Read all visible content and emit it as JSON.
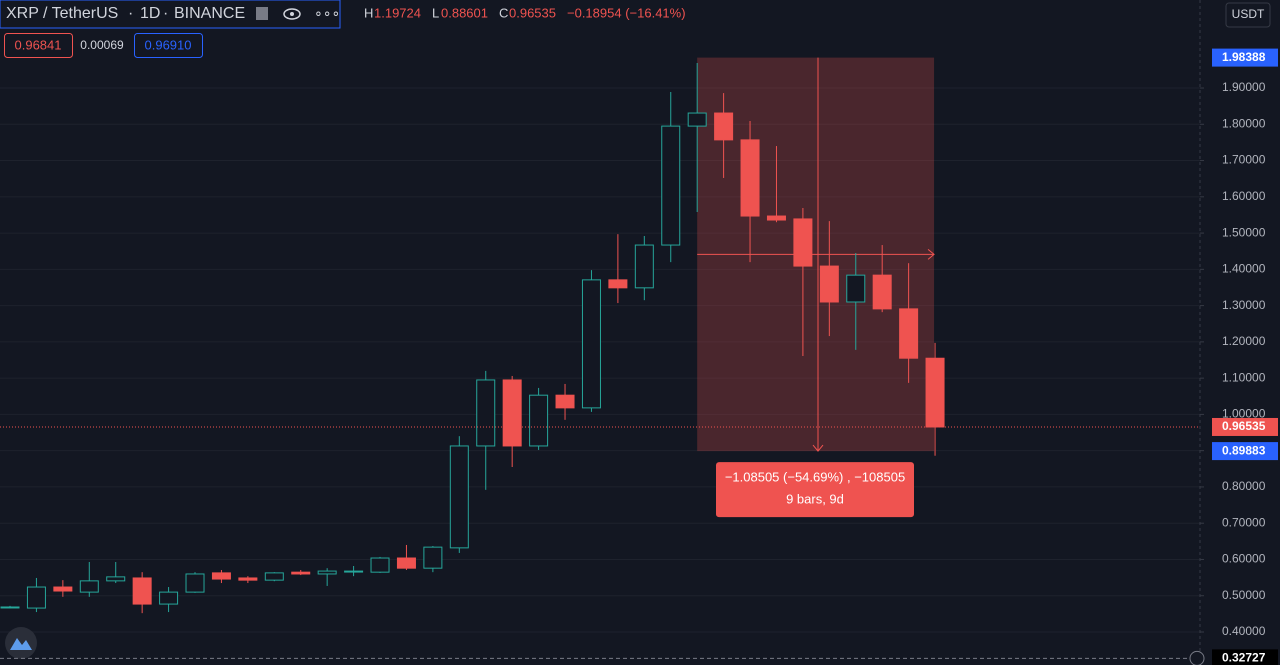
{
  "header": {
    "symbol": "XRP / TetherUS",
    "interval": "1D",
    "exchange": "BINANCE",
    "high_key": "H",
    "low_key": "L",
    "close_key": "C",
    "change": "−0.18954 (−16.41%)",
    "sell": "0.96841",
    "spread": "0.00069",
    "buy": "0.96910",
    "currency": "USDT"
  },
  "chart_data": {
    "type": "candlestick",
    "categories": [
      null,
      null,
      null,
      null,
      null,
      null,
      null,
      null,
      null,
      null,
      null,
      null,
      null,
      null,
      null,
      null,
      null,
      null,
      null,
      null,
      null,
      null,
      null,
      null,
      null,
      null,
      null,
      null,
      null,
      null,
      null,
      null,
      null,
      null,
      null,
      null
    ],
    "open": [
      0.469,
      0.466,
      0.524,
      0.51,
      0.541,
      0.549,
      0.477,
      0.51,
      0.563,
      0.549,
      0.543,
      0.565,
      0.56,
      0.568,
      0.565,
      0.604,
      0.576,
      0.632,
      0.913,
      1.095,
      0.913,
      1.053,
      1.018,
      1.371,
      1.349,
      1.467,
      1.795,
      1.831,
      1.757,
      1.547,
      1.539,
      1.409,
      1.31,
      1.384,
      1.291,
      1.15489
    ],
    "high": [
      0.472,
      0.549,
      0.543,
      0.593,
      0.593,
      0.565,
      0.524,
      0.565,
      0.571,
      0.554,
      0.565,
      0.571,
      0.576,
      0.582,
      0.607,
      0.64,
      0.637,
      0.94,
      1.12,
      1.106,
      1.073,
      1.084,
      1.398,
      1.497,
      1.492,
      1.889,
      1.969,
      1.886,
      1.809,
      1.74,
      1.569,
      1.533,
      1.445,
      1.467,
      1.417,
      1.19724
    ],
    "low": [
      0.465,
      0.455,
      0.497,
      0.497,
      0.535,
      0.452,
      0.455,
      0.508,
      0.535,
      0.535,
      0.54,
      0.557,
      0.527,
      0.554,
      0.563,
      0.571,
      0.565,
      0.618,
      0.792,
      0.855,
      0.902,
      0.985,
      1.007,
      1.307,
      1.315,
      1.42,
      1.558,
      1.652,
      1.42,
      1.53,
      1.161,
      1.216,
      1.178,
      1.282,
      1.087,
      0.88601
    ],
    "close": [
      0.469,
      0.524,
      0.513,
      0.541,
      0.552,
      0.477,
      0.51,
      0.56,
      0.546,
      0.543,
      0.563,
      0.56,
      0.568,
      0.568,
      0.604,
      0.576,
      0.634,
      0.913,
      1.095,
      0.913,
      1.053,
      1.018,
      1.371,
      1.349,
      1.467,
      1.795,
      1.831,
      1.757,
      1.547,
      1.536,
      1.409,
      1.31,
      1.384,
      1.291,
      1.155,
      0.96535
    ],
    "up_color": "#26a69a",
    "down_color": "#ef5350",
    "ylim": [
      0.309,
      2.1427
    ],
    "yticks": [
      {
        "value": 0.4,
        "label": "0.40000"
      },
      {
        "value": 0.5,
        "label": "0.50000"
      },
      {
        "value": 0.6,
        "label": "0.60000"
      },
      {
        "value": 0.7,
        "label": "0.70000"
      },
      {
        "value": 0.8,
        "label": "0.80000"
      },
      {
        "value": 0.9,
        "label": "0.90000"
      },
      {
        "value": 1.0,
        "label": "1.00000"
      },
      {
        "value": 1.1,
        "label": "1.10000"
      },
      {
        "value": 1.2,
        "label": "1.20000"
      },
      {
        "value": 1.3,
        "label": "1.30000"
      },
      {
        "value": 1.4,
        "label": "1.40000"
      },
      {
        "value": 1.5,
        "label": "1.50000"
      },
      {
        "value": 1.6,
        "label": "1.60000"
      },
      {
        "value": 1.7,
        "label": "1.70000"
      },
      {
        "value": 1.8,
        "label": "1.80000"
      },
      {
        "value": 1.9,
        "label": "1.90000"
      }
    ],
    "grid": true,
    "price_labels": [
      {
        "value": 1.98388,
        "color": "#2962ff"
      },
      {
        "value": 0.96535,
        "color": "#ef5350"
      },
      {
        "value": 0.89883,
        "color": "#2962ff"
      },
      {
        "value": 0.32727,
        "color": "#000000"
      }
    ],
    "measure": {
      "text": "−1.08505 (−54.69%) , −108505",
      "subtext": "9 bars, 9d",
      "color": "#ef5350"
    }
  }
}
